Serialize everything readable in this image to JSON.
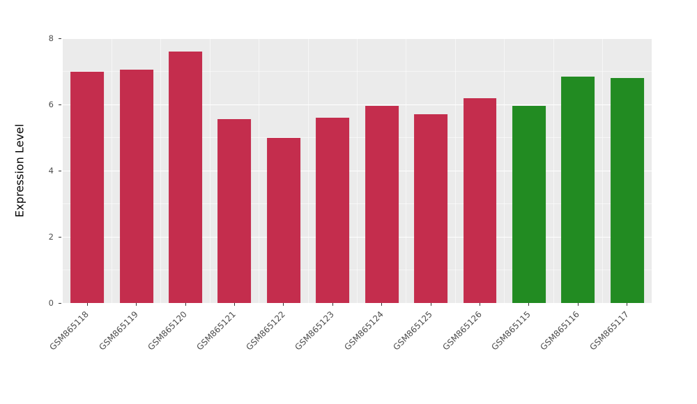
{
  "figure": {
    "background": "#FFFFFF",
    "panel_background": "#EBEBEB",
    "gridline_color": "#FFFFFF"
  },
  "chart_data": {
    "type": "bar",
    "title": "",
    "xlabel": "",
    "ylabel": "Expression Level",
    "ylim": [
      0,
      8
    ],
    "yticks": [
      0,
      2,
      4,
      6,
      8
    ],
    "grid": true,
    "legend": "none",
    "categories": [
      "GSM865118",
      "GSM865119",
      "GSM865120",
      "GSM865121",
      "GSM865122",
      "GSM865123",
      "GSM865124",
      "GSM865125",
      "GSM865126",
      "GSM865115",
      "GSM865116",
      "GSM865117"
    ],
    "values": [
      7.0,
      7.05,
      7.6,
      5.55,
      5.0,
      5.6,
      5.95,
      5.7,
      6.2,
      5.95,
      6.85,
      6.8
    ],
    "bar_colors": [
      "#C42D4D",
      "#C42D4D",
      "#C42D4D",
      "#C42D4D",
      "#C42D4D",
      "#C42D4D",
      "#C42D4D",
      "#C42D4D",
      "#C42D4D",
      "#228B22",
      "#228B22",
      "#228B22"
    ],
    "group_colors": {
      "red": "#C42D4D",
      "green": "#228B22"
    }
  }
}
